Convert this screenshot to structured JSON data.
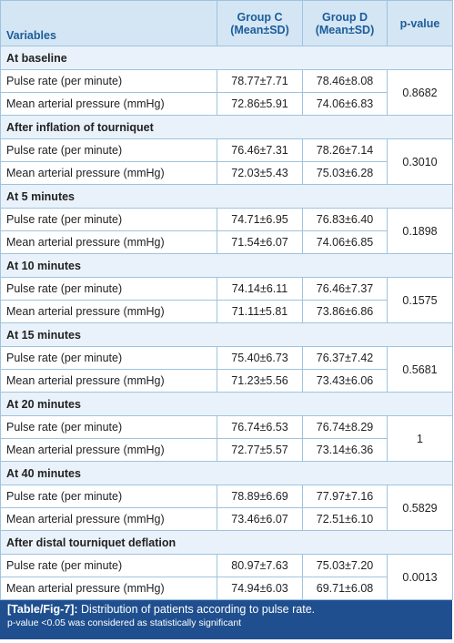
{
  "header": {
    "variables": "Variables",
    "group_c": [
      "Group C",
      "(Mean±SD)"
    ],
    "group_d": [
      "Group D",
      "(Mean±SD)"
    ],
    "p_value": "p-value"
  },
  "sections": [
    {
      "title": "At baseline",
      "p": "0.8682",
      "rows": [
        {
          "label": "Pulse rate (per minute)",
          "c": "78.77±7.71",
          "d": "78.46±8.08"
        },
        {
          "label": "Mean arterial pressure (mmHg)",
          "c": "72.86±5.91",
          "d": "74.06±6.83"
        }
      ]
    },
    {
      "title": "After inflation of tourniquet",
      "p": "0.3010",
      "rows": [
        {
          "label": "Pulse rate (per minute)",
          "c": "76.46±7.31",
          "d": "78.26±7.14"
        },
        {
          "label": "Mean arterial pressure (mmHg)",
          "c": "72.03±5.43",
          "d": "75.03±6.28"
        }
      ]
    },
    {
      "title": "At 5 minutes",
      "p": "0.1898",
      "rows": [
        {
          "label": "Pulse rate (per minute)",
          "c": "74.71±6.95",
          "d": "76.83±6.40"
        },
        {
          "label": "Mean arterial pressure (mmHg)",
          "c": "71.54±6.07",
          "d": "74.06±6.85"
        }
      ]
    },
    {
      "title": "At 10 minutes",
      "p": "0.1575",
      "rows": [
        {
          "label": "Pulse rate (per minute)",
          "c": "74.14±6.11",
          "d": "76.46±7.37"
        },
        {
          "label": "Mean arterial pressure (mmHg)",
          "c": "71.11±5.81",
          "d": "73.86±6.86"
        }
      ]
    },
    {
      "title": "At 15 minutes",
      "p": "0.5681",
      "rows": [
        {
          "label": "Pulse rate (per minute)",
          "c": "75.40±6.73",
          "d": "76.37±7.42"
        },
        {
          "label": "Mean arterial pressure (mmHg)",
          "c": "71.23±5.56",
          "d": "73.43±6.06"
        }
      ]
    },
    {
      "title": "At 20 minutes",
      "p": "1",
      "rows": [
        {
          "label": "Pulse rate (per minute)",
          "c": "76.74±6.53",
          "d": "76.74±8.29"
        },
        {
          "label": "Mean arterial pressure (mmHg)",
          "c": "72.77±5.57",
          "d": "73.14±6.36"
        }
      ]
    },
    {
      "title": "At 40 minutes",
      "p": "0.5829",
      "rows": [
        {
          "label": "Pulse rate (per minute)",
          "c": "78.89±6.69",
          "d": "77.97±7.16"
        },
        {
          "label": "Mean arterial pressure (mmHg)",
          "c": "73.46±6.07",
          "d": "72.51±6.10"
        }
      ]
    },
    {
      "title": "After distal tourniquet deflation",
      "p": "0.0013",
      "rows": [
        {
          "label": "Pulse rate (per minute)",
          "c": "80.97±7.63",
          "d": "75.03±7.20"
        },
        {
          "label": "Mean arterial pressure (mmHg)",
          "c": "74.94±6.03",
          "d": "69.71±6.08"
        }
      ]
    }
  ],
  "caption": {
    "label": "[Table/Fig-7]:",
    "text": "Distribution of patients according to pulse rate.",
    "note": "p-value <0.05 was considered as statistically significant"
  }
}
